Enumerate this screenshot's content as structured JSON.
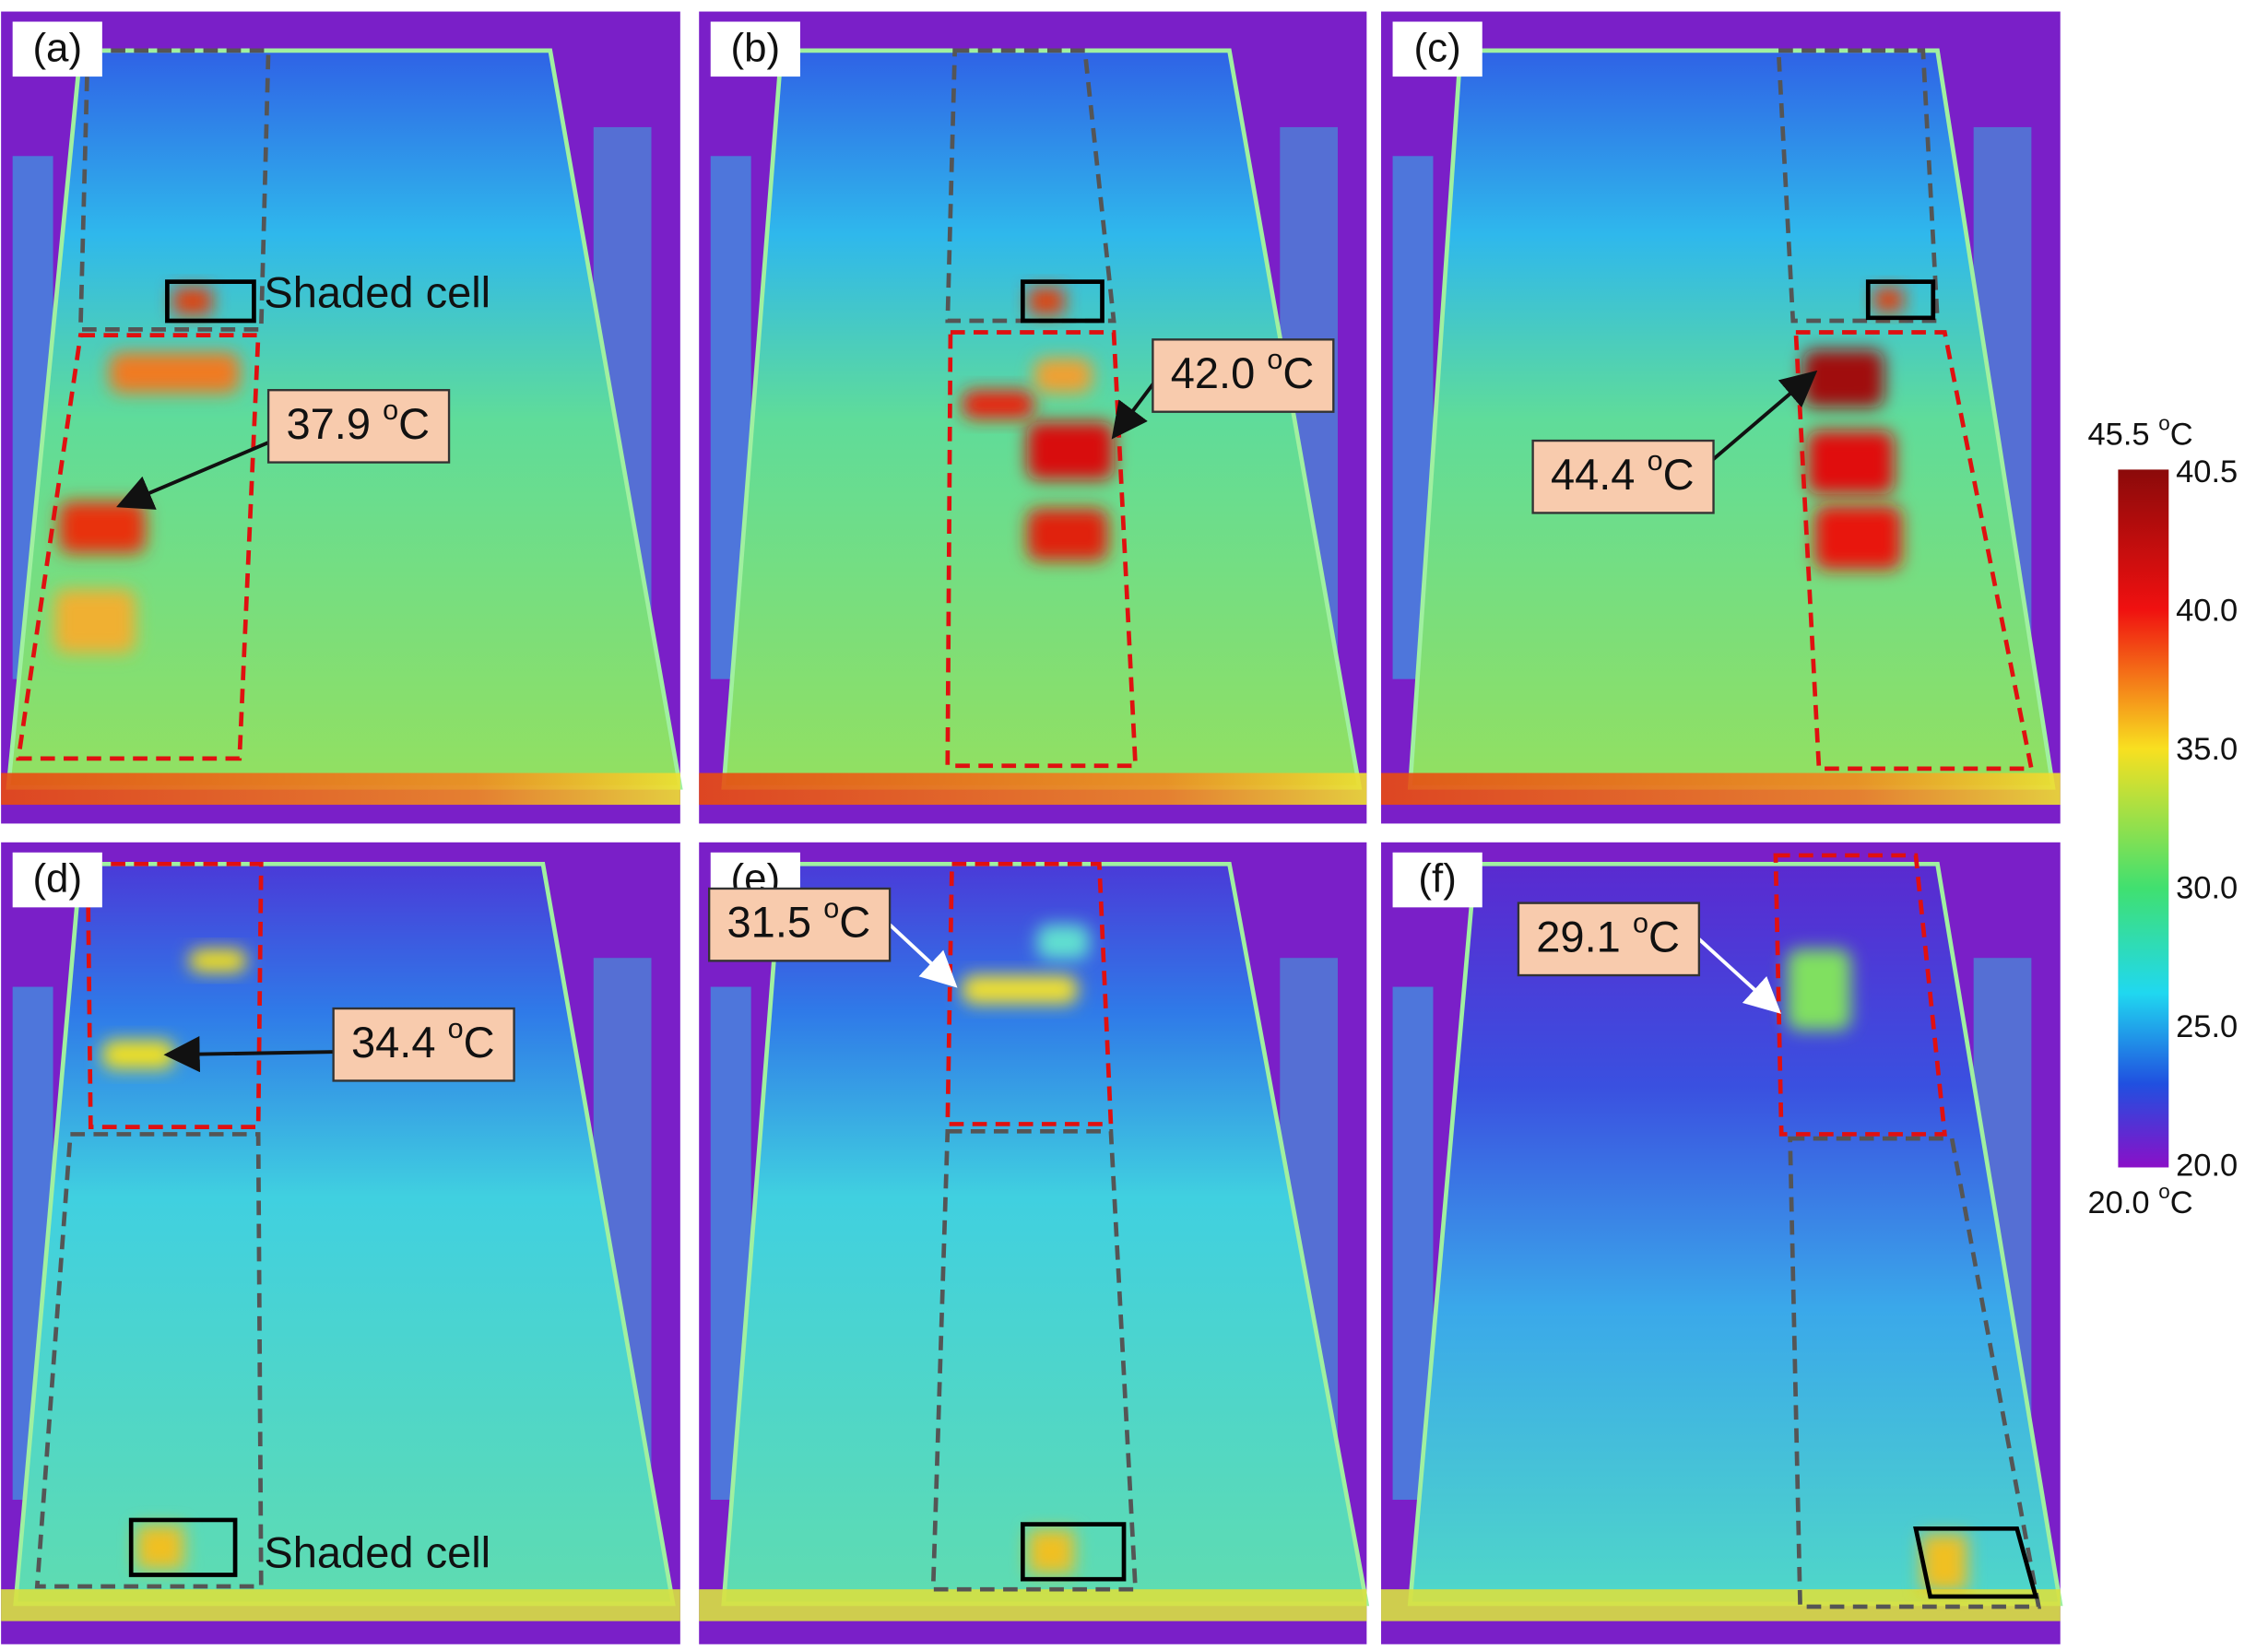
{
  "panels": [
    {
      "label": "(a)",
      "annotation": {
        "temp": "37.9",
        "deg": "o",
        "unit": "C"
      },
      "shaded_cell_label": "Shaded cell"
    },
    {
      "label": "(b)",
      "annotation": {
        "temp": "42.0",
        "deg": "o",
        "unit": "C"
      }
    },
    {
      "label": "(c)",
      "annotation": {
        "temp": "44.4",
        "deg": "o",
        "unit": "C"
      }
    },
    {
      "label": "(d)",
      "annotation": {
        "temp": "34.4",
        "deg": "o",
        "unit": "C"
      },
      "shaded_cell_label": "Shaded cell"
    },
    {
      "label": "(e)",
      "annotation": {
        "temp": "31.5",
        "deg": "o",
        "unit": "C"
      }
    },
    {
      "label": "(f)",
      "annotation": {
        "temp": "29.1",
        "deg": "o",
        "unit": "C"
      }
    }
  ],
  "colorbar": {
    "top_label": {
      "temp": "45.5",
      "deg": "o",
      "unit": "C"
    },
    "bottom_label": {
      "temp": "20.0",
      "deg": "o",
      "unit": "C"
    },
    "tick_labels": [
      "40.5",
      "40.0",
      "35.0",
      "30.0",
      "25.0",
      "20.0"
    ]
  }
}
